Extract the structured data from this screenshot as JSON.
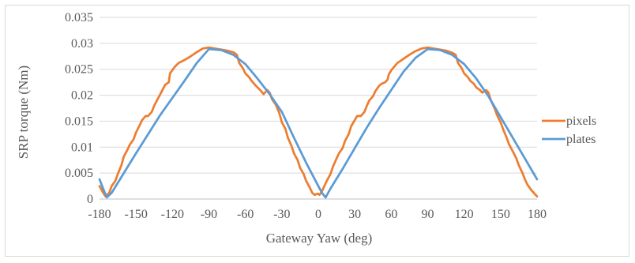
{
  "chart_data": {
    "type": "line",
    "title": "",
    "xlabel": "Gateway Yaw (deg)",
    "ylabel": "SRP torque (Nm)",
    "xlim": [
      -180,
      180
    ],
    "ylim": [
      0,
      0.035
    ],
    "xticks": [
      -180,
      -150,
      -120,
      -90,
      -60,
      -30,
      0,
      30,
      60,
      90,
      120,
      150,
      180
    ],
    "yticks": [
      0,
      0.005,
      0.01,
      0.015,
      0.02,
      0.025,
      0.03,
      0.035
    ],
    "xtick_labels": [
      "-180",
      "-150",
      "-120",
      "-90",
      "-60",
      "-30",
      "0",
      "30",
      "60",
      "90",
      "120",
      "150",
      "180"
    ],
    "ytick_labels": [
      "0",
      "0.005",
      "0.01",
      "0.015",
      "0.02",
      "0.025",
      "0.03",
      "0.035"
    ],
    "grid": "horizontal",
    "legend": "right",
    "series": [
      {
        "name": "pixels",
        "color": "#ED7D31",
        "x": [
          -180,
          -177,
          -175,
          -172,
          -170,
          -167,
          -165,
          -162,
          -160,
          -157,
          -155,
          -152,
          -150,
          -147,
          -145,
          -142,
          -140,
          -137,
          -135,
          -130,
          -126,
          -123,
          -122,
          -118,
          -115,
          -110,
          -105,
          -100,
          -95,
          -90,
          -85,
          -80,
          -75,
          -70,
          -67,
          -65,
          -62,
          -60,
          -57,
          -55,
          -52,
          -50,
          -47,
          -45,
          -42,
          -40,
          -38,
          -35,
          -32,
          -30,
          -27,
          -25,
          -22,
          -20,
          -17,
          -15,
          -12,
          -10,
          -7,
          -5,
          -3,
          -1,
          0,
          1,
          3,
          5,
          7,
          10,
          12,
          15,
          17,
          20,
          22,
          25,
          27,
          30,
          32,
          35,
          38,
          40,
          42,
          45,
          47,
          50,
          52,
          55,
          57,
          58,
          60,
          65,
          70,
          75,
          80,
          85,
          90,
          95,
          100,
          105,
          110,
          113,
          115,
          118,
          120,
          123,
          125,
          128,
          130,
          133,
          135,
          138,
          140,
          142,
          145,
          147,
          150,
          152,
          155,
          157,
          160,
          163,
          165,
          168,
          170,
          172,
          175,
          178,
          180
        ],
        "values": [
          0.0025,
          0.0012,
          0.0005,
          0.0012,
          0.0025,
          0.0035,
          0.0048,
          0.0065,
          0.0082,
          0.0095,
          0.0105,
          0.0115,
          0.0128,
          0.0142,
          0.0152,
          0.016,
          0.016,
          0.0168,
          0.018,
          0.0202,
          0.022,
          0.0225,
          0.0242,
          0.0255,
          0.0262,
          0.0268,
          0.0275,
          0.0283,
          0.029,
          0.0292,
          0.029,
          0.0288,
          0.0286,
          0.0283,
          0.0278,
          0.0262,
          0.0252,
          0.0242,
          0.0235,
          0.0228,
          0.022,
          0.0215,
          0.0208,
          0.0202,
          0.021,
          0.0205,
          0.0192,
          0.0182,
          0.0165,
          0.0148,
          0.0135,
          0.0118,
          0.0102,
          0.0088,
          0.0075,
          0.006,
          0.0048,
          0.0035,
          0.0022,
          0.0012,
          0.0008,
          0.001,
          0.001,
          0.0008,
          0.0015,
          0.0025,
          0.0035,
          0.0048,
          0.0062,
          0.0078,
          0.0088,
          0.0098,
          0.0112,
          0.0125,
          0.014,
          0.0152,
          0.016,
          0.016,
          0.0168,
          0.018,
          0.019,
          0.0198,
          0.0208,
          0.0218,
          0.0222,
          0.0225,
          0.023,
          0.024,
          0.0248,
          0.0262,
          0.027,
          0.0278,
          0.0285,
          0.029,
          0.0292,
          0.029,
          0.0288,
          0.0286,
          0.0282,
          0.0278,
          0.0262,
          0.0252,
          0.0242,
          0.0235,
          0.0228,
          0.0222,
          0.0215,
          0.021,
          0.0205,
          0.021,
          0.0205,
          0.019,
          0.0175,
          0.0162,
          0.0148,
          0.0135,
          0.0118,
          0.0105,
          0.0092,
          0.0078,
          0.0065,
          0.005,
          0.0038,
          0.0028,
          0.0018,
          0.001,
          0.0005
        ]
      },
      {
        "name": "plates",
        "color": "#5B9BD5",
        "x": [
          -180,
          -177,
          -174,
          -170,
          -160,
          -150,
          -140,
          -130,
          -120,
          -110,
          -100,
          -90,
          -80,
          -70,
          -60,
          -50,
          -40,
          -30,
          -20,
          -10,
          0,
          3,
          6,
          10,
          20,
          30,
          40,
          50,
          60,
          70,
          80,
          90,
          100,
          110,
          120,
          130,
          140,
          150,
          160,
          170,
          180
        ],
        "values": [
          0.0038,
          0.002,
          0.0003,
          0.0012,
          0.005,
          0.0088,
          0.0125,
          0.0162,
          0.0195,
          0.0228,
          0.0262,
          0.0289,
          0.0287,
          0.0278,
          0.026,
          0.0232,
          0.0202,
          0.0168,
          0.0118,
          0.007,
          0.0025,
          0.0012,
          0.0003,
          0.002,
          0.0058,
          0.0098,
          0.0138,
          0.0175,
          0.021,
          0.0245,
          0.0272,
          0.0289,
          0.0287,
          0.0278,
          0.026,
          0.0232,
          0.0198,
          0.0158,
          0.0118,
          0.0078,
          0.0038
        ]
      }
    ]
  }
}
